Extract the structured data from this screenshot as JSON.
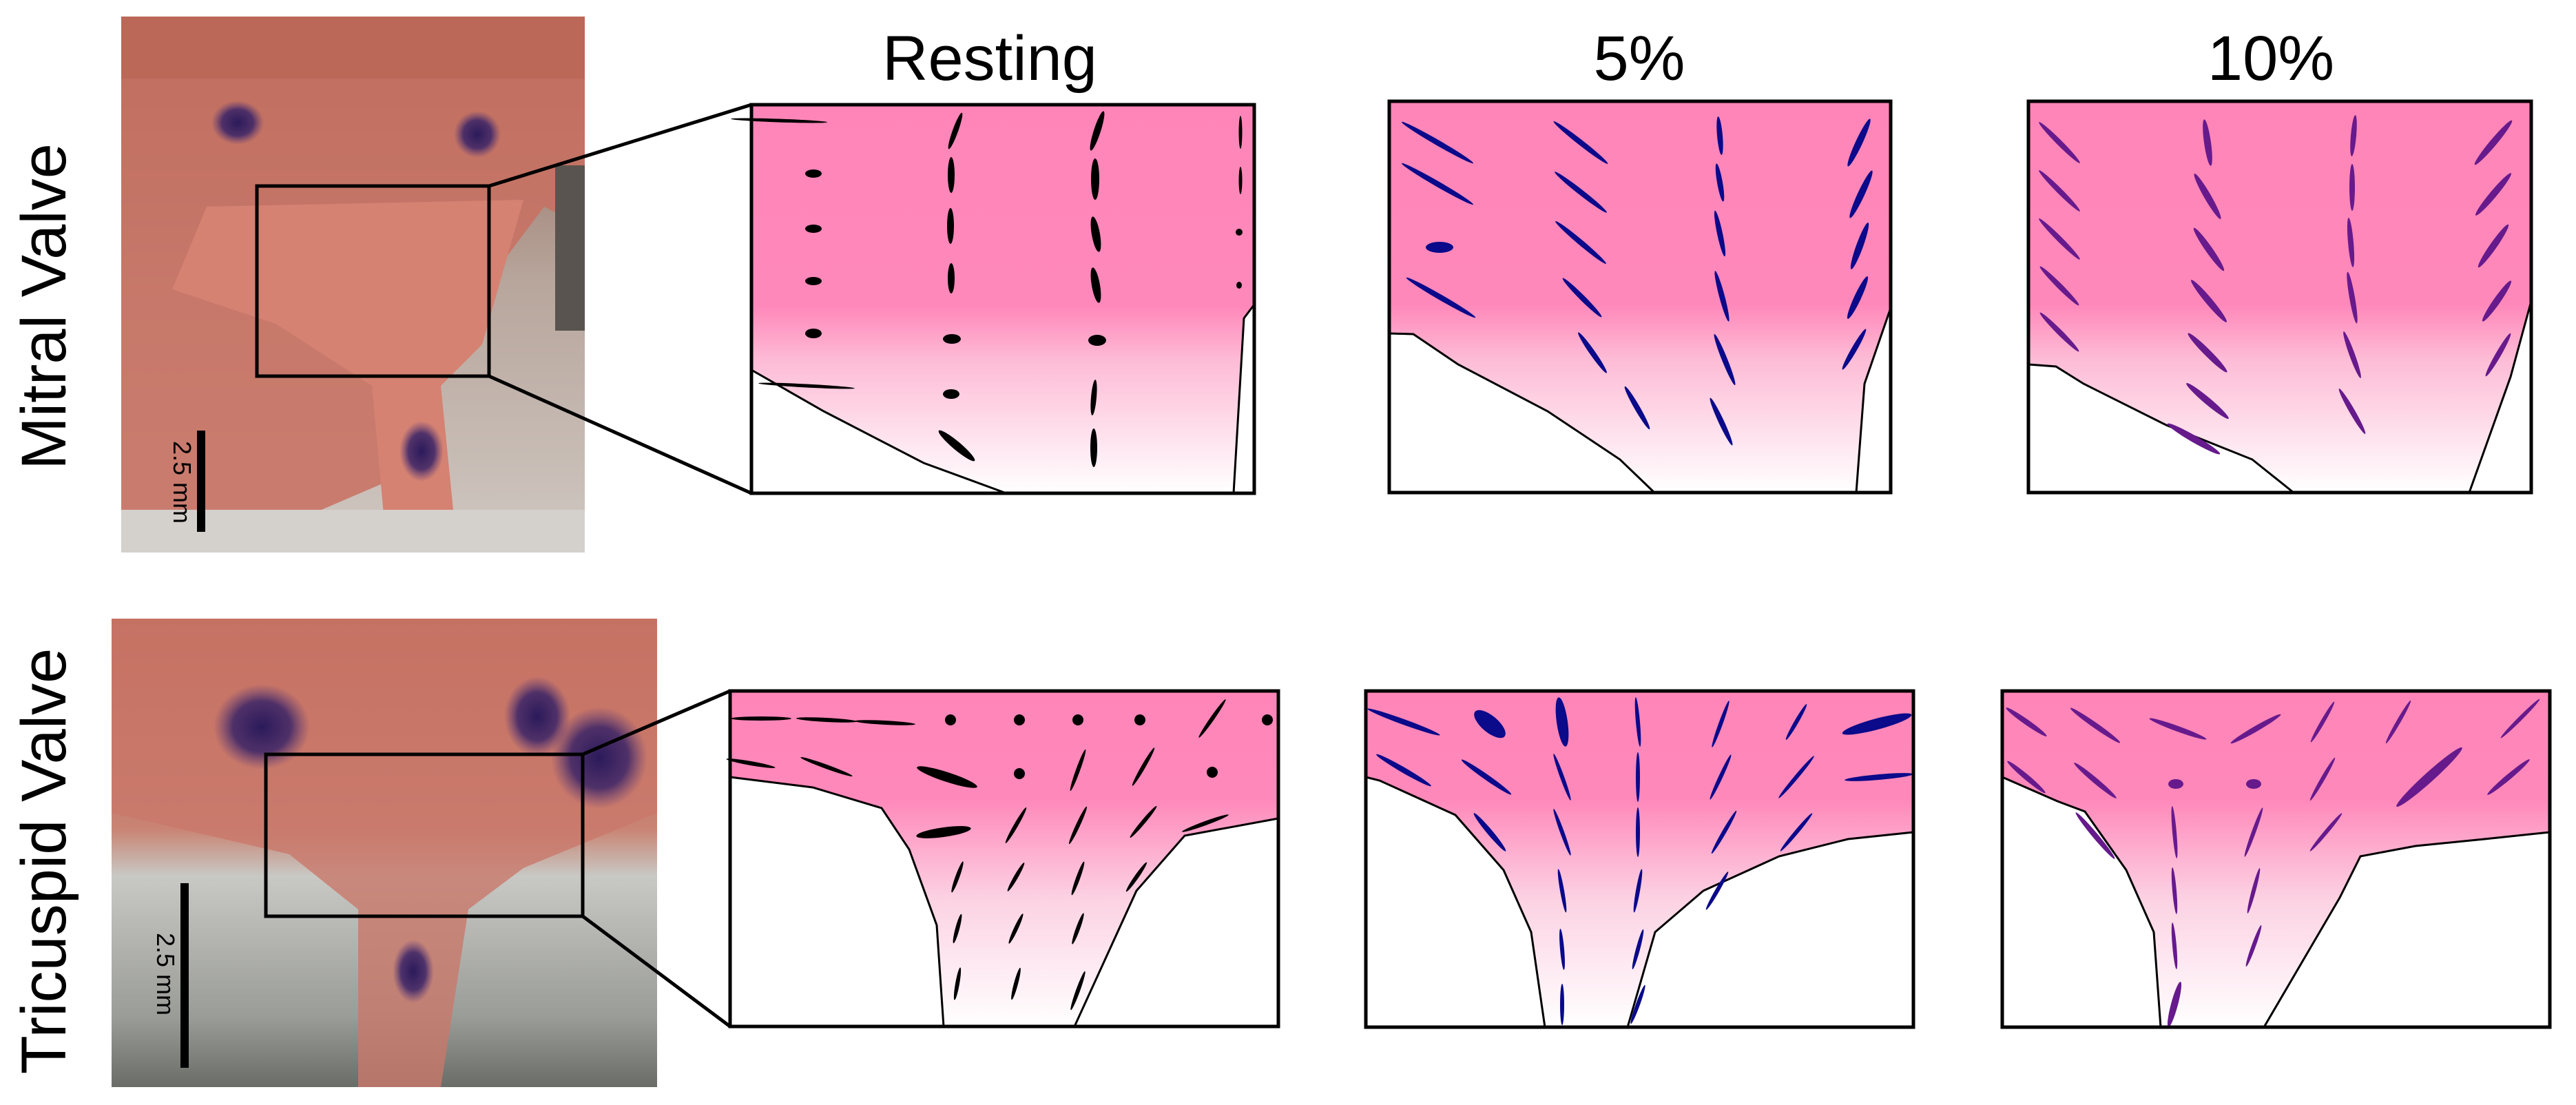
{
  "columns": [
    "Resting",
    "5%",
    "10%"
  ],
  "rows": [
    "Mitral Valve",
    "Tricuspid Valve"
  ],
  "scale_bar_labels": [
    "2.5 mm",
    "2.5 mm"
  ],
  "colors": {
    "tissue_pink": "#ff85b8",
    "resting_ellipse": "#000000",
    "strain5_ellipse": "#0a0a8a",
    "strain10_ellipse": "#661a8c",
    "outline": "#000000"
  }
}
